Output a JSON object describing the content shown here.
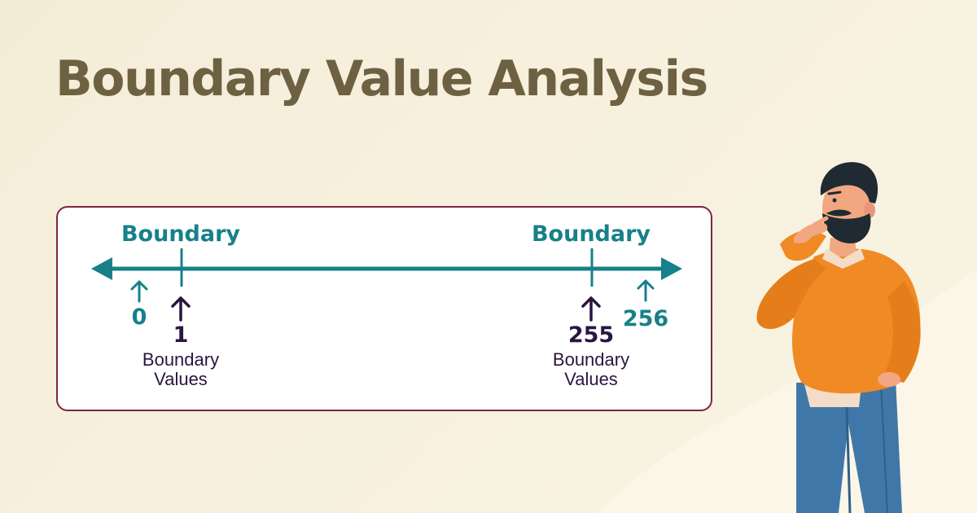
{
  "title": "Boundary Value Analysis",
  "diagram": {
    "left_boundary_label": "Boundary",
    "right_boundary_label": "Boundary",
    "values": {
      "below_min": "0",
      "min": "1",
      "max": "255",
      "above_max": "256"
    },
    "caption_left": [
      "Boundary",
      "Values"
    ],
    "caption_right": [
      "Boundary",
      "Values"
    ]
  },
  "colors": {
    "title": "#6d6142",
    "teal": "#17808a",
    "dark_purple": "#2a1540",
    "panel_border": "#7a2844",
    "sweater": "#f08a24",
    "jeans": "#3f78a8"
  },
  "illustration": {
    "icon": "thinking-man-illustration"
  }
}
